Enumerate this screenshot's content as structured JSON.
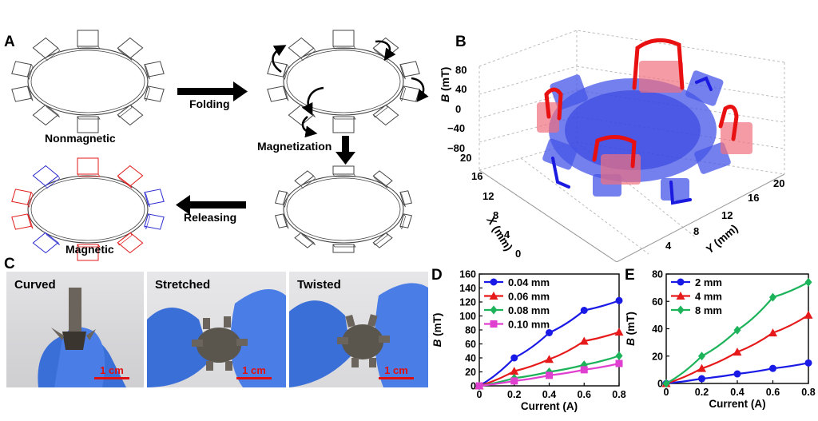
{
  "panels": {
    "A": {
      "letter": "A",
      "labels": {
        "nonmagnetic": "Nonmagnetic",
        "folding": "Folding",
        "magnetization": "Magnetization",
        "releasing": "Releasing",
        "magnetic": "Magnetic"
      }
    },
    "B": {
      "letter": "B",
      "z_label_var": "B",
      "z_label_unit": "(mT)",
      "x_label_var": "X",
      "x_label_unit": "(mm)",
      "y_label_var": "Y",
      "y_label_unit": "(mm)",
      "z_ticks": [
        "80",
        "40",
        "0",
        "−40",
        "−80"
      ],
      "x_ticks": [
        "20",
        "16",
        "12",
        "8",
        "4",
        "0"
      ],
      "y_ticks": [
        "4",
        "8",
        "12",
        "16",
        "20"
      ],
      "colors": {
        "positive": "#e81010",
        "negative": "#1a1ae0"
      }
    },
    "C": {
      "letter": "C",
      "photos": [
        {
          "title": "Curved",
          "scale": "1 cm"
        },
        {
          "title": "Stretched",
          "scale": "1 cm"
        },
        {
          "title": "Twisted",
          "scale": "1 cm"
        }
      ]
    }
  },
  "chart_data": [
    {
      "id": "D",
      "type": "line",
      "letter": "D",
      "xlabel": "Current (A)",
      "ylabel_var": "B",
      "ylabel_unit": "(mT)",
      "x": [
        0,
        0.2,
        0.4,
        0.6,
        0.8
      ],
      "xlim": [
        0,
        0.8
      ],
      "ylim": [
        0,
        160
      ],
      "yticks": [
        0,
        20,
        40,
        60,
        80,
        100,
        120,
        140,
        160
      ],
      "xticks": [
        0,
        0.2,
        0.4,
        0.6,
        0.8
      ],
      "legend": "top-left",
      "series": [
        {
          "name": "0.04 mm",
          "values": [
            0,
            40,
            76,
            108,
            122
          ],
          "color": "#1a1ae6",
          "marker": "circle"
        },
        {
          "name": "0.06 mm",
          "values": [
            0,
            21,
            38,
            64,
            77
          ],
          "color": "#e61a1a",
          "marker": "triangle"
        },
        {
          "name": "0.08 mm",
          "values": [
            0,
            11,
            20,
            30,
            43
          ],
          "color": "#1db35a",
          "marker": "diamond"
        },
        {
          "name": "0.10 mm",
          "values": [
            0,
            7,
            15,
            23,
            32
          ],
          "color": "#e040d0",
          "marker": "square"
        }
      ]
    },
    {
      "id": "E",
      "type": "line",
      "letter": "E",
      "xlabel": "Current (A)",
      "ylabel_var": "B",
      "ylabel_unit": "(mT)",
      "x": [
        0,
        0.2,
        0.4,
        0.6,
        0.8
      ],
      "xlim": [
        0,
        0.8
      ],
      "ylim": [
        0,
        80
      ],
      "yticks": [
        0,
        20,
        40,
        60,
        80
      ],
      "xticks": [
        0,
        0.2,
        0.4,
        0.6,
        0.8
      ],
      "legend": "top-left",
      "series": [
        {
          "name": "2 mm",
          "values": [
            0,
            3.5,
            7,
            11,
            15
          ],
          "color": "#1a1ae6",
          "marker": "circle"
        },
        {
          "name": "4 mm",
          "values": [
            0,
            11,
            23,
            37,
            50
          ],
          "color": "#e61a1a",
          "marker": "triangle"
        },
        {
          "name": "8 mm",
          "values": [
            0,
            20,
            39,
            63,
            74
          ],
          "color": "#1db35a",
          "marker": "diamond"
        }
      ]
    }
  ]
}
